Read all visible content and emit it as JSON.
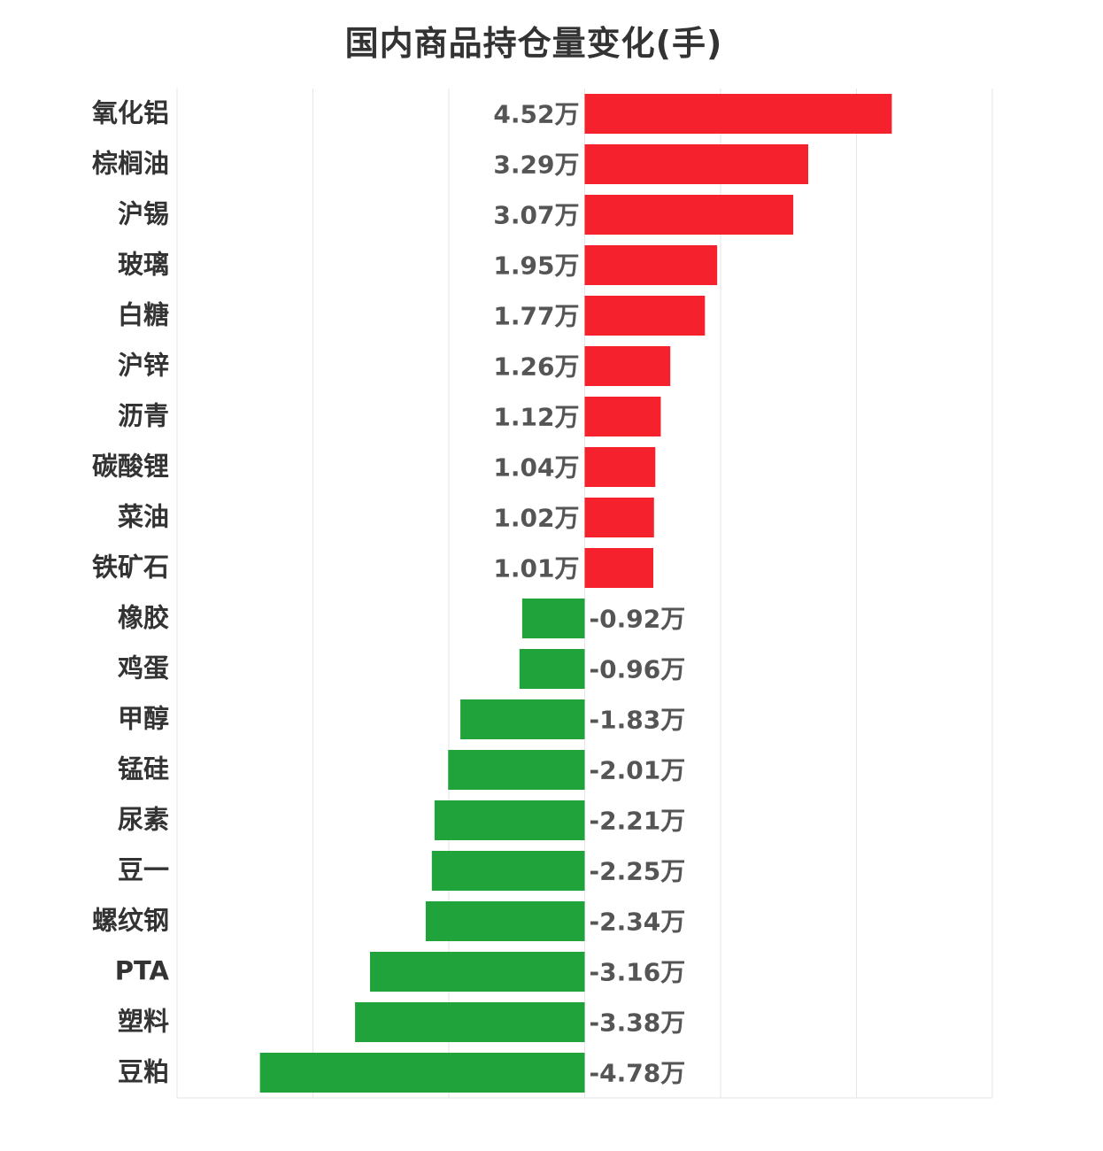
{
  "chart_data": {
    "type": "bar",
    "orientation": "horizontal",
    "title": "国内商品持仓量变化(手)",
    "xlabel": "",
    "ylabel": "",
    "unit_suffix": "万",
    "grid": true,
    "xlim": [
      -6.0,
      6.0
    ],
    "categories": [
      "氧化铝",
      "棕榈油",
      "沪锡",
      "玻璃",
      "白糖",
      "沪锌",
      "沥青",
      "碳酸锂",
      "菜油",
      "铁矿石",
      "橡胶",
      "鸡蛋",
      "甲醇",
      "锰硅",
      "尿素",
      "豆一",
      "螺纹钢",
      "PTA",
      "塑料",
      "豆粕"
    ],
    "values": [
      4.52,
      3.29,
      3.07,
      1.95,
      1.77,
      1.26,
      1.12,
      1.04,
      1.02,
      1.01,
      -0.92,
      -0.96,
      -1.83,
      -2.01,
      -2.21,
      -2.25,
      -2.34,
      -3.16,
      -3.38,
      -4.78
    ],
    "value_labels": [
      "4.52万",
      "3.29万",
      "3.07万",
      "1.95万",
      "1.77万",
      "1.26万",
      "1.12万",
      "1.04万",
      "1.02万",
      "1.01万",
      "-0.92万",
      "-0.96万",
      "-1.83万",
      "-2.01万",
      "-2.21万",
      "-2.25万",
      "-2.34万",
      "-3.16万",
      "-3.38万",
      "-4.78万"
    ],
    "colors": {
      "positive": "#f5222d",
      "negative": "#21a33b",
      "grid": "#e6e6e6"
    }
  }
}
